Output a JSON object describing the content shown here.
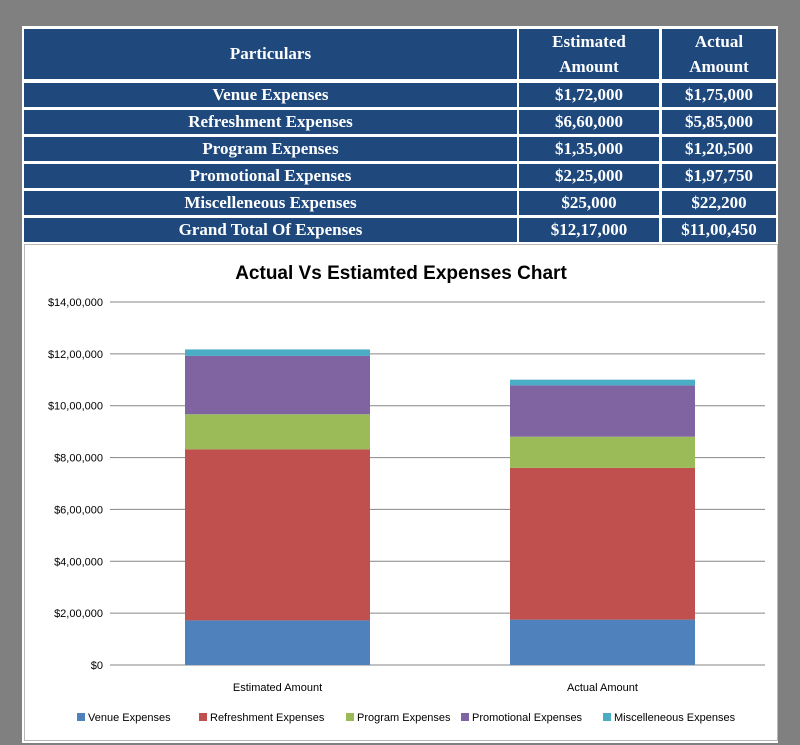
{
  "table": {
    "headers": {
      "particulars": "Particulars",
      "estimated_line1": "Estimated",
      "estimated_line2": "Amount",
      "actual_line1": "Actual",
      "actual_line2": "Amount"
    },
    "rows": [
      {
        "label": "Venue Expenses",
        "estimated": "$1,72,000",
        "actual": "$1,75,000"
      },
      {
        "label": "Refreshment Expenses",
        "estimated": "$6,60,000",
        "actual": "$5,85,000"
      },
      {
        "label": "Program Expenses",
        "estimated": "$1,35,000",
        "actual": "$1,20,500"
      },
      {
        "label": "Promotional Expenses",
        "estimated": "$2,25,000",
        "actual": "$1,97,750"
      },
      {
        "label": "Miscelleneous Expenses",
        "estimated": "$25,000",
        "actual": "$22,200"
      },
      {
        "label": "Grand Total Of Expenses",
        "estimated": "$12,17,000",
        "actual": "$11,00,450"
      }
    ],
    "header_color": "#1f497d"
  },
  "chart_data": {
    "type": "bar",
    "stacked": true,
    "title": "Actual Vs Estiamted Expenses Chart",
    "categories": [
      "Estimated Amount",
      "Actual Amount"
    ],
    "series": [
      {
        "name": "Venue Expenses",
        "values": [
          172000,
          175000
        ],
        "color": "#4f81bd"
      },
      {
        "name": "Refreshment Expenses",
        "values": [
          660000,
          585000
        ],
        "color": "#c0504d"
      },
      {
        "name": "Program Expenses",
        "values": [
          135000,
          120500
        ],
        "color": "#9bbb59"
      },
      {
        "name": "Promotional Expenses",
        "values": [
          225000,
          197750
        ],
        "color": "#8064a2"
      },
      {
        "name": "Miscelleneous Expenses",
        "values": [
          25000,
          22200
        ],
        "color": "#4bacc6"
      }
    ],
    "ylim": [
      0,
      1400000
    ],
    "yticks": [
      {
        "value": 0,
        "label": "$0"
      },
      {
        "value": 200000,
        "label": "$2,00,000"
      },
      {
        "value": 400000,
        "label": "$4,00,000"
      },
      {
        "value": 600000,
        "label": "$6,00,000"
      },
      {
        "value": 800000,
        "label": "$8,00,000"
      },
      {
        "value": 1000000,
        "label": "$10,00,000"
      },
      {
        "value": 1200000,
        "label": "$12,00,000"
      },
      {
        "value": 1400000,
        "label": "$14,00,000"
      }
    ],
    "grid": true,
    "legend_position": "bottom"
  }
}
